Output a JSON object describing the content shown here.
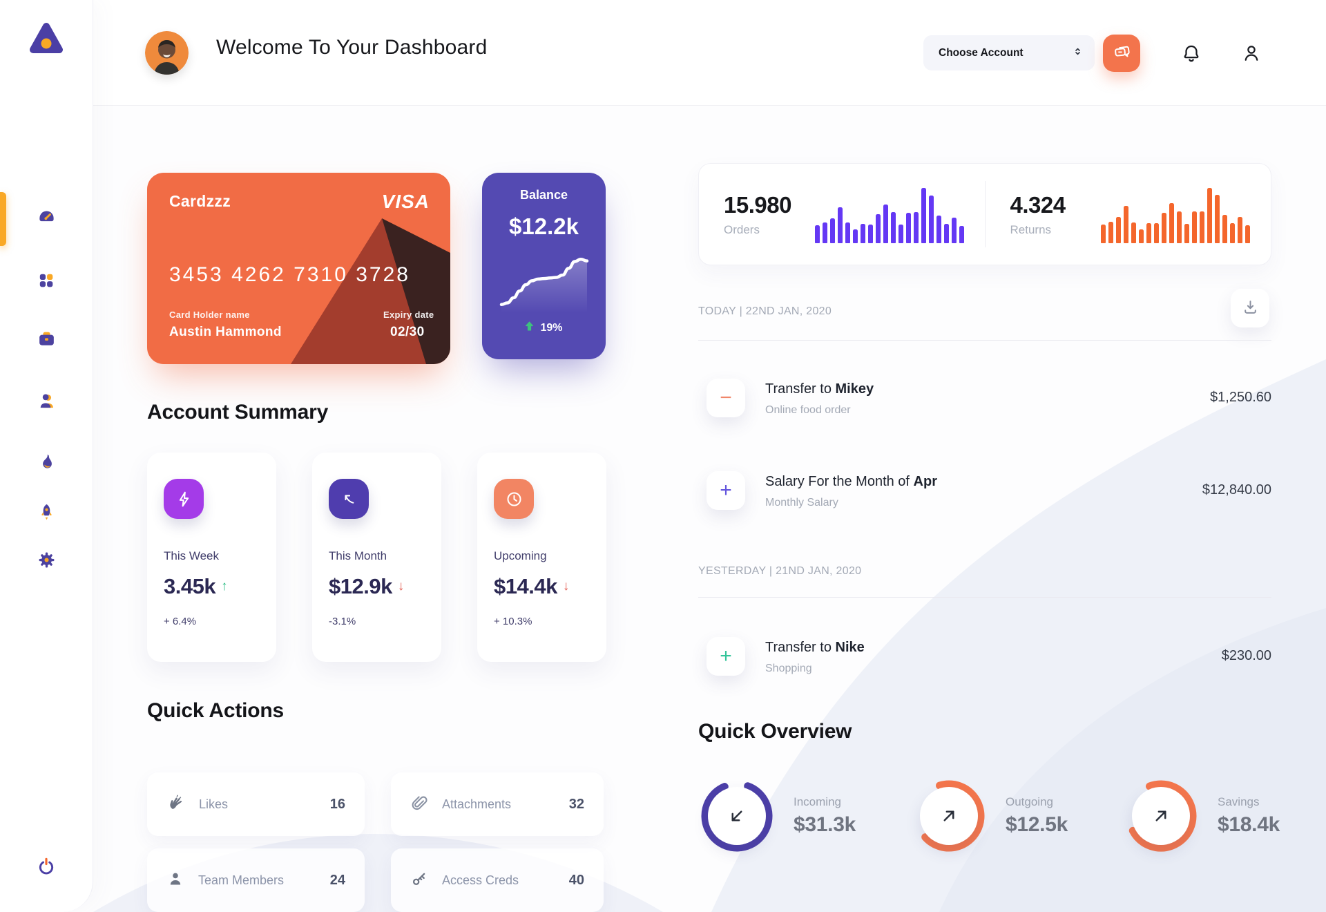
{
  "app": {
    "title": "Welcome To Your Dashboard"
  },
  "colors": {
    "accent_orange": "#F16C45",
    "accent_purple": "#544AB2",
    "sidebar_purple": "#4C429F",
    "sidebar_orange": "#F9A825",
    "green": "#2EBD85",
    "red": "#E2574C",
    "bar_purple": "#6438F4",
    "bar_orange": "#F4662C"
  },
  "header": {
    "account_dropdown_label": "Choose Account",
    "icons": [
      "chat-bubbles-icon",
      "bell-icon",
      "user-icon"
    ]
  },
  "sidebar": {
    "items": [
      {
        "icon": "dashboard-gauge-icon",
        "active": true
      },
      {
        "icon": "apps-grid-icon"
      },
      {
        "icon": "briefcase-icon"
      },
      {
        "icon": "profile-icon"
      },
      {
        "icon": "flame-icon"
      },
      {
        "icon": "rocket-icon"
      },
      {
        "icon": "settings-gear-icon"
      }
    ],
    "logout_icon": "power-icon"
  },
  "credit_card": {
    "name": "Cardzzz",
    "brand": "VISA",
    "number": "3453 4262 7310 3728",
    "holder_label": "Card Holder name",
    "holder_name": "Austin Hammond",
    "expiry_label": "Expiry date",
    "expiry": "02/30"
  },
  "balance_card": {
    "label": "Balance",
    "value": "$12.2k",
    "change": "19%"
  },
  "account_summary": {
    "title": "Account Summary",
    "cards": [
      {
        "label": "This Week",
        "value": "3.45k",
        "arrow": "↑",
        "arrow_color": "#2EBD85",
        "change": "+ 6.4%",
        "icon": "lightning-icon",
        "icon_bg": "#A43BE8"
      },
      {
        "label": "This Month",
        "value": "$12.9k",
        "arrow": "↓",
        "arrow_color": "#E2574C",
        "change": "-3.1%",
        "icon": "trend-arrow-icon",
        "icon_bg": "#4F3DAE"
      },
      {
        "label": "Upcoming",
        "value": "$14.4k",
        "arrow": "↓",
        "arrow_color": "#E2574C",
        "change": "+ 10.3%",
        "icon": "clock-icon",
        "icon_bg": "#F28563"
      }
    ]
  },
  "quick_actions": {
    "title": "Quick Actions",
    "items": [
      {
        "label": "Likes",
        "value": "16",
        "icon": "clap-icon"
      },
      {
        "label": "Attachments",
        "value": "32",
        "icon": "paperclip-icon"
      },
      {
        "label": "Team Members",
        "value": "24",
        "icon": "member-icon"
      },
      {
        "label": "Access Creds",
        "value": "40",
        "icon": "key-icon"
      }
    ]
  },
  "transactions": {
    "download_icon": "download-icon",
    "groups": [
      {
        "date_label": "TODAY | 22ND JAN, 2020",
        "rows": [
          {
            "sign": "−",
            "sign_color": "#F0876A",
            "title_prefix": "Transfer to ",
            "title_bold": "Mikey",
            "subtitle": "Online food order",
            "amount": "$1,250.60"
          },
          {
            "sign": "+",
            "sign_color": "#6456DD",
            "title_prefix": "Salary For the Month of ",
            "title_bold": "Apr",
            "subtitle": "Monthly Salary",
            "amount": "$12,840.00"
          }
        ]
      },
      {
        "date_label": "YESTERDAY | 21ND JAN, 2020",
        "rows": [
          {
            "sign": "+",
            "sign_color": "#35C49A",
            "title_prefix": "Transfer to ",
            "title_bold": "Nike",
            "subtitle": "Shopping",
            "amount": "$230.00"
          }
        ]
      }
    ]
  },
  "quick_overview": {
    "title": "Quick Overview",
    "items": [
      {
        "label": "Incoming",
        "value": "$31.3k",
        "arrow_icon": "arrow-down-left-icon"
      },
      {
        "label": "Outgoing",
        "value": "$12.5k",
        "arrow_icon": "arrow-up-right-icon"
      },
      {
        "label": "Savings",
        "value": "$18.4k",
        "arrow_icon": "arrow-up-right-icon"
      }
    ]
  },
  "chart_data": [
    {
      "type": "bar",
      "title": "Orders",
      "value_label": "15.980",
      "color": "#6438F4",
      "unit": "relative-px",
      "values": [
        26,
        30,
        36,
        52,
        30,
        20,
        28,
        27,
        42,
        56,
        45,
        27,
        44,
        45,
        80,
        69,
        40,
        28,
        37,
        25
      ]
    },
    {
      "type": "bar",
      "title": "Returns",
      "value_label": "4.324",
      "color": "#F4662C",
      "unit": "relative-px",
      "values": [
        27,
        31,
        38,
        54,
        30,
        20,
        29,
        29,
        44,
        58,
        46,
        28,
        46,
        46,
        80,
        70,
        41,
        29,
        38,
        26
      ]
    },
    {
      "type": "line",
      "title": "Balance trend",
      "annotation": "19% up",
      "color": "#FFFFFF",
      "unit": "relative-0-100",
      "values": [
        10,
        13,
        22,
        34,
        45,
        52,
        55,
        56,
        57,
        58,
        62,
        74,
        86,
        90,
        87
      ]
    },
    {
      "type": "donut",
      "title": "Incoming",
      "value": "$31.3k",
      "percent": 0.88,
      "rotate_deg": -70,
      "color": "#4C3FA8"
    },
    {
      "type": "donut",
      "title": "Outgoing",
      "value": "$12.5k",
      "percent": 0.68,
      "rotate_deg": 253,
      "color": "#F4764C"
    },
    {
      "type": "donut",
      "title": "Savings",
      "value": "$18.4k",
      "percent": 0.73,
      "rotate_deg": 249,
      "color": "#F4764C"
    }
  ]
}
